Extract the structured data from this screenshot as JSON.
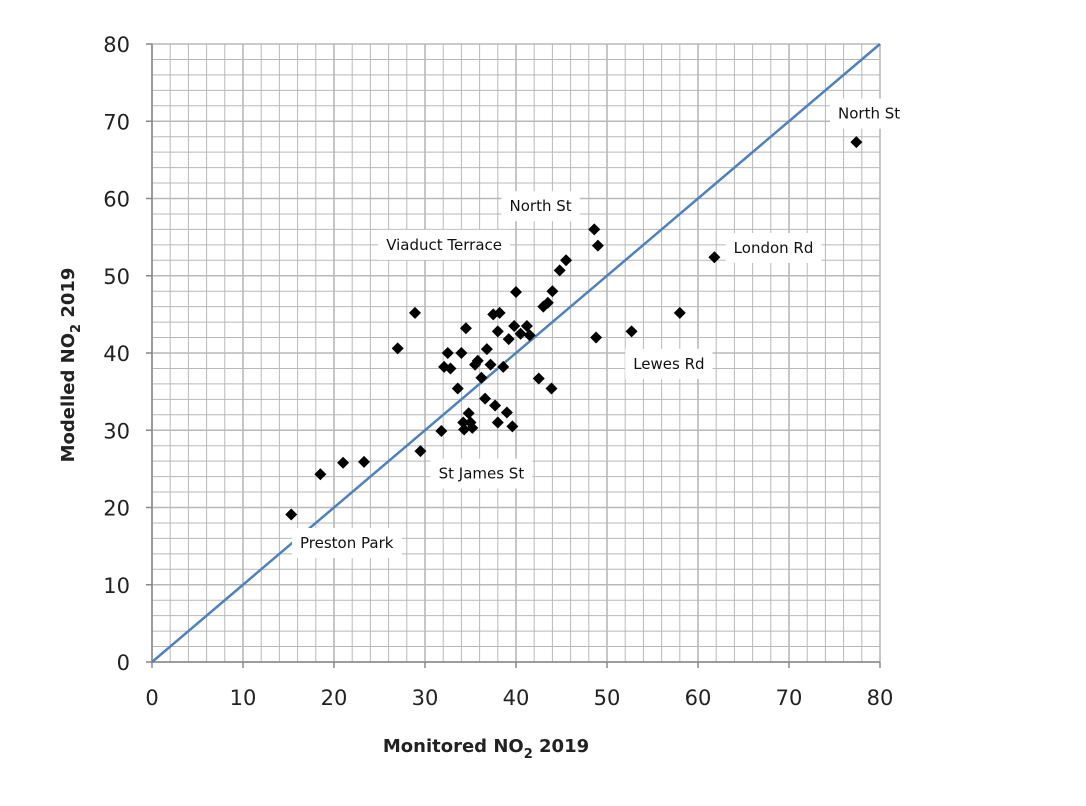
{
  "chart_data": {
    "type": "scatter",
    "xlabel": {
      "main": "Monitored NO",
      "sub": "2",
      "tail": " 2019"
    },
    "ylabel": {
      "main": "Modelled NO",
      "sub": "2",
      "tail": " 2019"
    },
    "xlim": [
      0,
      80
    ],
    "ylim": [
      0,
      80
    ],
    "x_ticks": [
      0,
      10,
      20,
      30,
      40,
      50,
      60,
      70,
      80
    ],
    "y_ticks": [
      0,
      10,
      20,
      30,
      40,
      50,
      60,
      70,
      80
    ],
    "x_tick_labels": [
      "0",
      "10",
      "20",
      "30",
      "40",
      "50",
      "60",
      "70",
      "80"
    ],
    "y_tick_labels": [
      "0",
      "10",
      "20",
      "30",
      "40",
      "50",
      "60",
      "70",
      "80"
    ],
    "grid": "major and minor",
    "reference_line": {
      "from": [
        0,
        0
      ],
      "to": [
        80,
        80
      ]
    },
    "points": [
      [
        15.3,
        19.1
      ],
      [
        18.5,
        24.3
      ],
      [
        21,
        25.8
      ],
      [
        23.3,
        25.9
      ],
      [
        27,
        40.6
      ],
      [
        28.9,
        45.2
      ],
      [
        29.5,
        27.3
      ],
      [
        31.8,
        29.9
      ],
      [
        32.1,
        38.2
      ],
      [
        32.5,
        40
      ],
      [
        32.8,
        38
      ],
      [
        33.6,
        35.4
      ],
      [
        34,
        40
      ],
      [
        34.2,
        31
      ],
      [
        34.3,
        30.1
      ],
      [
        34.5,
        43.2
      ],
      [
        34.8,
        32.2
      ],
      [
        35,
        31
      ],
      [
        35.2,
        30.3
      ],
      [
        35.5,
        38.5
      ],
      [
        35.8,
        39
      ],
      [
        36.2,
        36.8
      ],
      [
        36.6,
        34.1
      ],
      [
        36.8,
        40.5
      ],
      [
        37.2,
        38.5
      ],
      [
        37.5,
        45
      ],
      [
        37.7,
        33.2
      ],
      [
        38,
        31
      ],
      [
        38,
        42.8
      ],
      [
        38.2,
        45.2
      ],
      [
        38.6,
        38.2
      ],
      [
        39,
        32.3
      ],
      [
        39.2,
        41.8
      ],
      [
        39.6,
        30.5
      ],
      [
        39.8,
        43.5
      ],
      [
        40,
        47.9
      ],
      [
        40.5,
        42.5
      ],
      [
        41.2,
        43.5
      ],
      [
        41.5,
        42.3
      ],
      [
        42.5,
        36.7
      ],
      [
        43,
        46
      ],
      [
        43.5,
        46.5
      ],
      [
        43.9,
        35.4
      ],
      [
        44,
        48
      ],
      [
        44.8,
        50.7
      ],
      [
        45.5,
        52
      ],
      [
        48.6,
        56
      ],
      [
        48.8,
        42
      ],
      [
        49,
        53.9
      ],
      [
        52.7,
        42.8
      ],
      [
        58,
        45.2
      ],
      [
        61.8,
        52.4
      ],
      [
        77.4,
        67.3
      ]
    ],
    "annotations": [
      {
        "text": "North St",
        "x": 78.8,
        "y": 71
      },
      {
        "text": "North St",
        "x": 42.7,
        "y": 59
      },
      {
        "text": "Viaduct Terrace",
        "x": 32.1,
        "y": 54
      },
      {
        "text": "London Rd",
        "x": 68.3,
        "y": 53.6
      },
      {
        "text": "Lewes Rd",
        "x": 56.8,
        "y": 38.6
      },
      {
        "text": "St James St",
        "x": 36.2,
        "y": 24.4
      },
      {
        "text": "Preston Park",
        "x": 21.4,
        "y": 15.4
      }
    ]
  },
  "colors": {
    "line": "#4f81bd",
    "marker": "#000000",
    "grid": "#b8b8b8",
    "axis": "#888888"
  }
}
